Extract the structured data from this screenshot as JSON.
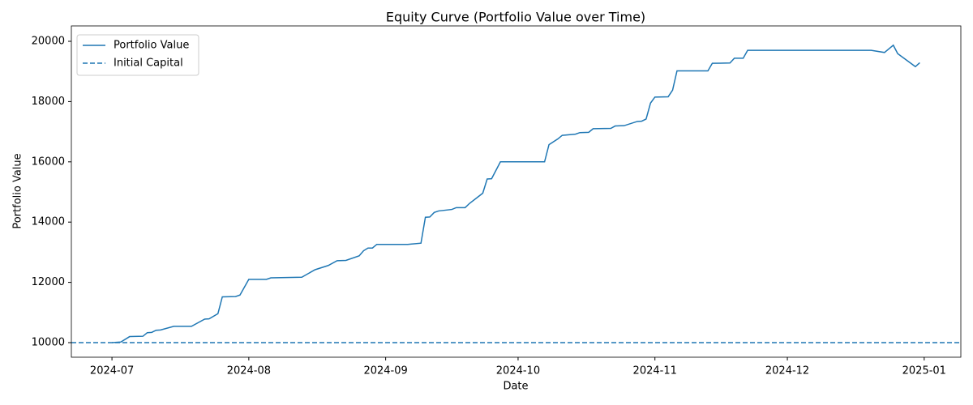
{
  "chart_data": {
    "type": "line",
    "title": "Equity Curve (Portfolio Value over Time)",
    "x_label": "Date",
    "y_label": "Portfolio Value",
    "x": [
      0,
      2,
      4,
      7,
      8,
      9,
      10,
      11,
      14,
      18,
      21,
      22,
      24,
      25,
      28,
      29,
      31,
      35,
      36,
      43,
      46,
      49,
      51,
      53,
      56,
      57,
      58,
      59,
      60,
      67,
      70,
      71,
      72,
      73,
      74,
      77,
      78,
      80,
      81,
      84,
      85,
      86,
      88,
      98,
      99,
      101,
      102,
      105,
      106,
      108,
      109,
      113,
      114,
      116,
      119,
      120,
      121,
      122,
      123,
      126,
      127,
      128,
      135,
      136,
      140,
      141,
      143,
      144,
      172,
      175,
      177,
      178,
      182,
      183
    ],
    "series": [
      {
        "name": "Portfolio Value",
        "color": "#1f77b4",
        "values": [
          10000,
          10020,
          10200,
          10210,
          10330,
          10340,
          10410,
          10420,
          10540,
          10540,
          10780,
          10790,
          10960,
          11520,
          11530,
          11580,
          12100,
          12100,
          12150,
          12170,
          12420,
          12560,
          12720,
          12730,
          12880,
          13050,
          13140,
          13140,
          13260,
          13260,
          13300,
          14160,
          14170,
          14320,
          14370,
          14420,
          14480,
          14480,
          14620,
          14960,
          15430,
          15440,
          16000,
          16000,
          16570,
          16760,
          16880,
          16920,
          16970,
          16980,
          17100,
          17110,
          17190,
          17200,
          17340,
          17350,
          17420,
          17950,
          18150,
          18160,
          18380,
          19020,
          19020,
          19270,
          19280,
          19440,
          19440,
          19700,
          19700,
          19630,
          19870,
          19590,
          19160,
          19290
        ]
      }
    ],
    "hlines": [
      {
        "name": "Initial Capital",
        "color": "#1f77b4",
        "value": 10000,
        "dash": "dashed"
      }
    ],
    "xlim": [
      -9.2,
      192.3
    ],
    "xticks": [
      {
        "value": 0,
        "label": "2024-07"
      },
      {
        "value": 31,
        "label": "2024-08"
      },
      {
        "value": 62,
        "label": "2024-09"
      },
      {
        "value": 92,
        "label": "2024-10"
      },
      {
        "value": 123,
        "label": "2024-11"
      },
      {
        "value": 153,
        "label": "2024-12"
      },
      {
        "value": 184,
        "label": "2025-01"
      }
    ],
    "ylim": [
      9516,
      20511
    ],
    "yticks": [
      10000,
      12000,
      14000,
      16000,
      18000,
      20000
    ],
    "legend": "upper left",
    "grid": false
  }
}
